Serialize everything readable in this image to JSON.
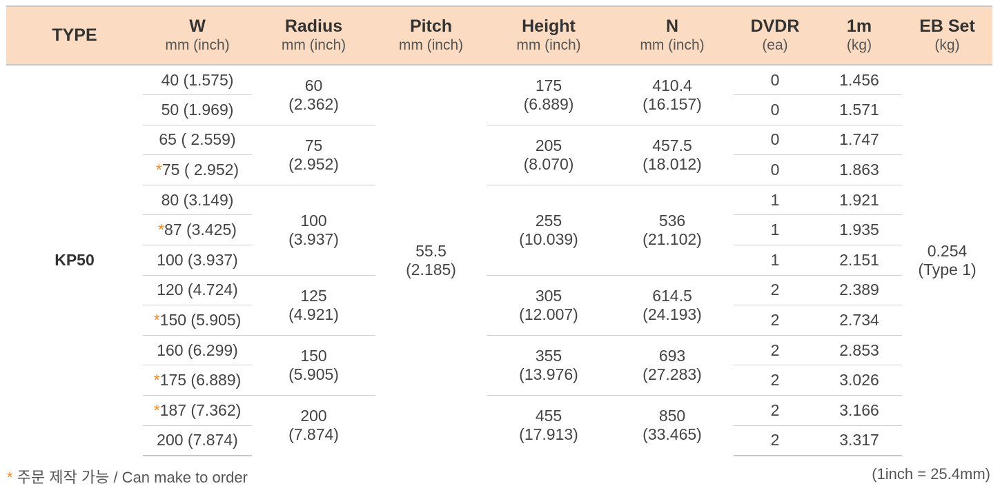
{
  "header": {
    "type": "TYPE",
    "w": {
      "title": "W",
      "unit": "mm (inch)"
    },
    "radius": {
      "title": "Radius",
      "unit": "mm (inch)"
    },
    "pitch": {
      "title": "Pitch",
      "unit": "mm (inch)"
    },
    "height": {
      "title": "Height",
      "unit": "mm (inch)"
    },
    "n": {
      "title": "N",
      "unit": "mm (inch)"
    },
    "dvdr": {
      "title": "DVDR",
      "unit": "(ea)"
    },
    "m1": {
      "title": "1m",
      "unit": "(kg)"
    },
    "ebset": {
      "title": "EB Set",
      "unit": "(kg)"
    }
  },
  "type_value": "KP50",
  "pitch": {
    "mm": "55.5",
    "inch": "(2.185)"
  },
  "ebset": {
    "value": "0.254",
    "note": "(Type 1)"
  },
  "rows": [
    {
      "star": "",
      "w": "40 (1.575)",
      "dvdr": "0",
      "m1": "1.456"
    },
    {
      "star": "",
      "w": "50 (1.969)",
      "dvdr": "0",
      "m1": "1.571"
    },
    {
      "star": "",
      "w": "65 ( 2.559)",
      "dvdr": "0",
      "m1": "1.747"
    },
    {
      "star": "*",
      "w": "75 ( 2.952)",
      "dvdr": "0",
      "m1": "1.863"
    },
    {
      "star": "",
      "w": "80 (3.149)",
      "dvdr": "1",
      "m1": "1.921"
    },
    {
      "star": "*",
      "w": "87 (3.425)",
      "dvdr": "1",
      "m1": "1.935"
    },
    {
      "star": "",
      "w": "100 (3.937)",
      "dvdr": "1",
      "m1": "2.151"
    },
    {
      "star": "",
      "w": "120 (4.724)",
      "dvdr": "2",
      "m1": "2.389"
    },
    {
      "star": "*",
      "w": "150 (5.905)",
      "dvdr": "2",
      "m1": "2.734"
    },
    {
      "star": "",
      "w": "160 (6.299)",
      "dvdr": "2",
      "m1": "2.853"
    },
    {
      "star": "*",
      "w": "175 (6.889)",
      "dvdr": "2",
      "m1": "3.026"
    },
    {
      "star": "*",
      "w": "187 (7.362)",
      "dvdr": "2",
      "m1": "3.166"
    },
    {
      "star": "",
      "w": "200 (7.874)",
      "dvdr": "2",
      "m1": "3.317"
    }
  ],
  "groups": [
    {
      "radius_mm": "60",
      "radius_inch": "(2.362)",
      "height_mm": "175",
      "height_inch": "(6.889)",
      "n_mm": "410.4",
      "n_inch": "(16.157)"
    },
    {
      "radius_mm": "75",
      "radius_inch": "(2.952)",
      "height_mm": "205",
      "height_inch": "(8.070)",
      "n_mm": "457.5",
      "n_inch": "(18.012)"
    },
    {
      "radius_mm": "100",
      "radius_inch": "(3.937)",
      "height_mm": "255",
      "height_inch": "(10.039)",
      "n_mm": "536",
      "n_inch": "(21.102)"
    },
    {
      "radius_mm": "125",
      "radius_inch": "(4.921)",
      "height_mm": "305",
      "height_inch": "(12.007)",
      "n_mm": "614.5",
      "n_inch": "(24.193)"
    },
    {
      "radius_mm": "150",
      "radius_inch": "(5.905)",
      "height_mm": "355",
      "height_inch": "(13.976)",
      "n_mm": "693",
      "n_inch": "(27.283)"
    },
    {
      "radius_mm": "200",
      "radius_inch": "(7.874)",
      "height_mm": "455",
      "height_inch": "(17.913)",
      "n_mm": "850",
      "n_inch": "(33.465)"
    }
  ],
  "footer": {
    "star": "*",
    "note": " 주문 제작 가능 / Can make to order",
    "conversion": "(1inch = 25.4mm)"
  },
  "colors": {
    "header_bg": "#fbdcc2",
    "star": "#f08a24",
    "rule": "#c7c7c7"
  }
}
